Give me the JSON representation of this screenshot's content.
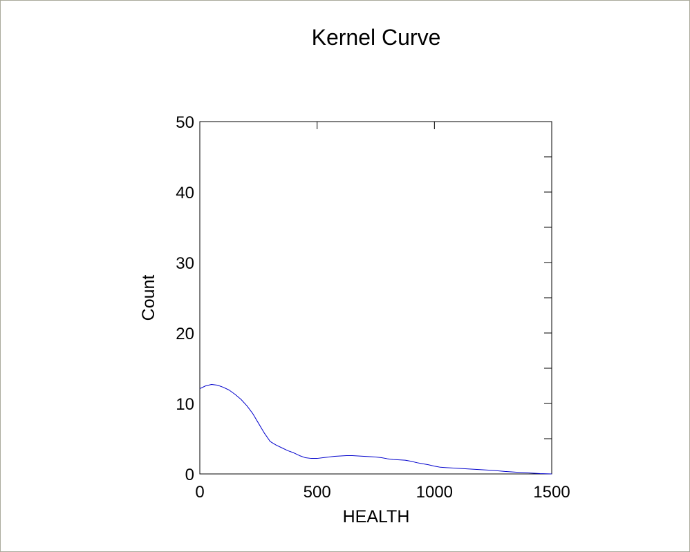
{
  "chart_data": {
    "type": "line",
    "title": "Kernel Curve",
    "xlabel": "HEALTH",
    "ylabel": "Count",
    "xlim": [
      0,
      1500
    ],
    "ylim": [
      0,
      50
    ],
    "x_ticks": [
      "0",
      "500",
      "1000",
      "1500"
    ],
    "y_ticks": [
      "0",
      "10",
      "20",
      "30",
      "40",
      "50"
    ],
    "grid": false,
    "series": [
      {
        "color": "#0000cc",
        "x": [
          0,
          25,
          50,
          75,
          100,
          125,
          150,
          175,
          200,
          225,
          250,
          275,
          300,
          325,
          350,
          375,
          400,
          425,
          450,
          475,
          500,
          525,
          550,
          575,
          600,
          625,
          650,
          675,
          700,
          725,
          750,
          775,
          800,
          825,
          850,
          875,
          900,
          925,
          950,
          975,
          1000,
          1025,
          1050,
          1100,
          1150,
          1200,
          1250,
          1300,
          1350,
          1400,
          1450,
          1500
        ],
        "y": [
          12.1,
          12.5,
          12.7,
          12.6,
          12.3,
          11.9,
          11.3,
          10.6,
          9.7,
          8.6,
          7.2,
          5.8,
          4.6,
          4.1,
          3.7,
          3.3,
          3.0,
          2.6,
          2.3,
          2.2,
          2.2,
          2.3,
          2.4,
          2.5,
          2.55,
          2.6,
          2.6,
          2.55,
          2.5,
          2.45,
          2.4,
          2.3,
          2.15,
          2.05,
          2.0,
          1.95,
          1.8,
          1.6,
          1.45,
          1.3,
          1.1,
          0.95,
          0.9,
          0.8,
          0.7,
          0.6,
          0.5,
          0.35,
          0.25,
          0.15,
          0.05,
          0.0
        ]
      }
    ]
  }
}
